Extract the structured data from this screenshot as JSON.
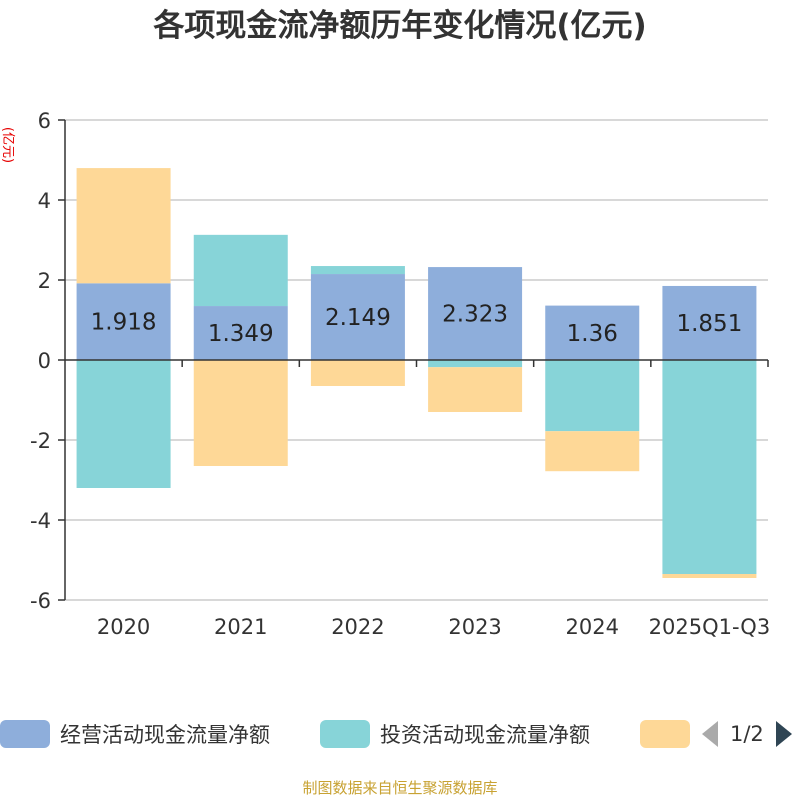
{
  "title": "各项现金流净额历年变化情况(亿元)",
  "source_note": "制图数据来自恒生聚源数据库",
  "chart_data": {
    "type": "bar",
    "stacked": true,
    "ylabel": "(亿元)",
    "ylim": [
      -6,
      6
    ],
    "yticks": [
      6,
      4,
      2,
      0,
      -2,
      -4,
      -6
    ],
    "grid": true,
    "categories": [
      "2020",
      "2021",
      "2022",
      "2023",
      "2024",
      "2025Q1-Q3"
    ],
    "series": [
      {
        "name": "经营活动现金流量净额",
        "color": "#8eaedb",
        "values": [
          1.918,
          1.349,
          2.149,
          2.323,
          1.36,
          1.851
        ],
        "labels": [
          "1.918",
          "1.349",
          "2.149",
          "2.323",
          "1.36",
          "1.851"
        ]
      },
      {
        "name": "投资活动现金流量净额",
        "color": "#87d4d8",
        "values": [
          -3.2,
          1.78,
          0.2,
          -0.18,
          -1.78,
          -5.35
        ]
      },
      {
        "name": "",
        "color": "#fed897",
        "values": [
          2.88,
          -2.65,
          -0.65,
          -1.12,
          -1.0,
          -0.1
        ]
      }
    ],
    "legend": {
      "position": "bottom",
      "page_text": "1/2"
    }
  }
}
